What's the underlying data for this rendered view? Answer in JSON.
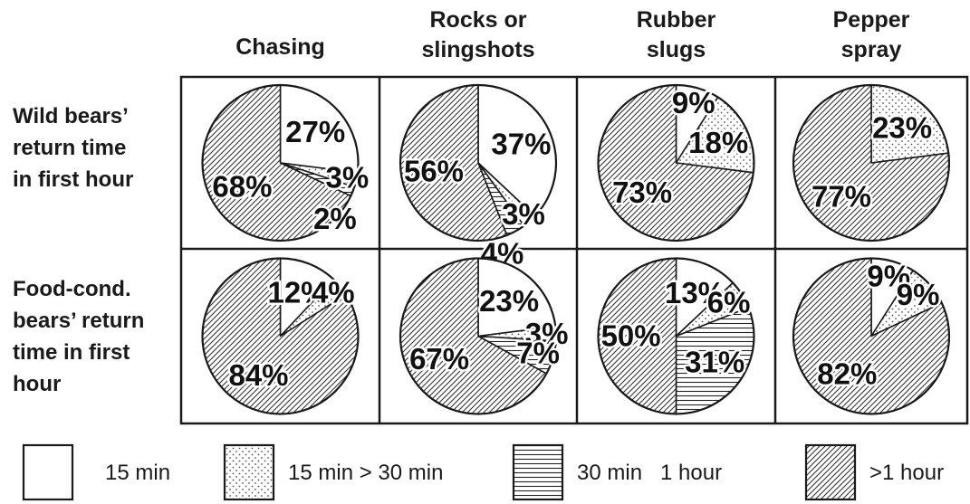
{
  "colors": {
    "ink": "#1a1a1a",
    "background": "#ffffff"
  },
  "chart_data": {
    "type": "pie",
    "columns": [
      "Chasing",
      "Rocks or slingshots",
      "Rubber slugs",
      "Pepper spray"
    ],
    "column_label_lines": [
      [
        "Chasing"
      ],
      [
        "Rocks or",
        "slingshots"
      ],
      [
        "Rubber",
        "slugs"
      ],
      [
        "Pepper",
        "spray"
      ]
    ],
    "rows": [
      "Wild bears’ return time in first hour",
      "Food-cond. bears’ return time in first hour"
    ],
    "row_label_lines": [
      [
        "Wild bears’",
        "return time",
        "in first hour"
      ],
      [
        "Food-cond.",
        "bears’ return",
        "time in first",
        "hour"
      ]
    ],
    "legend": [
      {
        "label": "15 min",
        "pattern": "blank"
      },
      {
        "label": "15 min > 30 min",
        "pattern": "dots"
      },
      {
        "label": "30 min   1 hour",
        "pattern": "hlines"
      },
      {
        "label": ">1 hour",
        "pattern": "diagonal"
      }
    ],
    "pies": [
      [
        {
          "values": [
            27,
            3,
            2,
            68
          ],
          "labels": [
            "27%",
            "3%",
            "2%",
            "68%"
          ]
        },
        {
          "values": [
            37,
            3,
            4,
            56
          ],
          "labels": [
            "37%",
            "3%",
            "4%",
            "56%"
          ]
        },
        {
          "values": [
            9,
            18,
            0,
            73
          ],
          "labels": [
            "9%",
            "18%",
            "",
            "73%"
          ]
        },
        {
          "values": [
            0,
            23,
            0,
            77
          ],
          "labels": [
            "",
            "23%",
            "",
            "77%"
          ]
        }
      ],
      [
        {
          "values": [
            12,
            4,
            0,
            84
          ],
          "labels": [
            "12%",
            "4%",
            "",
            "84%"
          ]
        },
        {
          "values": [
            23,
            3,
            7,
            67
          ],
          "labels": [
            "23%",
            "3%",
            "7%",
            "67%"
          ]
        },
        {
          "values": [
            13,
            6,
            31,
            50
          ],
          "labels": [
            "13%",
            "6%",
            "31%",
            "50%"
          ]
        },
        {
          "values": [
            9,
            9,
            0,
            82
          ],
          "labels": [
            "9%",
            "9%",
            "",
            "82%"
          ]
        }
      ]
    ]
  }
}
